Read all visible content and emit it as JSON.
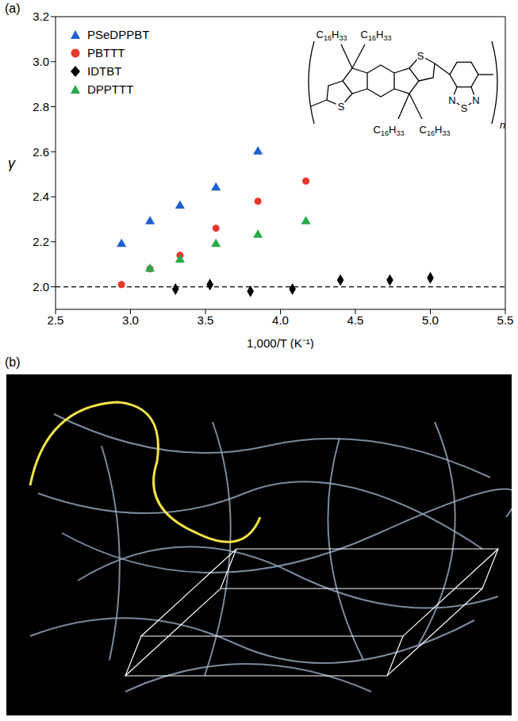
{
  "chart_data": {
    "type": "scatter",
    "panel_label": "(a)",
    "x_label": "1,000/T (K⁻¹)",
    "y_label": "γ",
    "xlim": [
      2.5,
      5.5
    ],
    "xticks": [
      2.5,
      {
        "value": 3,
        "label": "3.0"
      },
      3.5,
      {
        "value": 4,
        "label": "4.0"
      },
      4.5,
      {
        "value": 5,
        "label": "5.0"
      },
      5.5
    ],
    "ylim": [
      1.9,
      3.2
    ],
    "yticks": [
      {
        "value": 2,
        "label": "2.0"
      },
      2.2,
      2.4,
      2.6,
      2.8,
      {
        "value": 3,
        "label": "3.0"
      },
      3.2
    ],
    "grid": false,
    "legend": "upper left",
    "reference_line": {
      "y": 2,
      "line_style": "dashed"
    },
    "series": [
      {
        "name": "PSeDPPBT",
        "color": "#1f5fd0",
        "marker": "triangle",
        "x": [
          2.94,
          3.13,
          3.33,
          3.57,
          3.85
        ],
        "values": [
          2.19,
          2.29,
          2.36,
          2.44,
          2.6
        ]
      },
      {
        "name": "PBTTT",
        "color": "#e8382c",
        "marker": "circle",
        "x": [
          2.94,
          3.13,
          3.33,
          3.57,
          3.85,
          4.17
        ],
        "values": [
          2.01,
          2.08,
          2.14,
          2.26,
          2.38,
          2.47
        ]
      },
      {
        "name": "IDTBT",
        "color": "#000000",
        "marker": "diamond",
        "x": [
          3.3,
          3.53,
          3.8,
          4.08,
          4.4,
          4.73,
          5.0
        ],
        "values": [
          1.99,
          2.01,
          1.98,
          1.99,
          2.03,
          2.03,
          2.04
        ]
      },
      {
        "name": "DPPTTT",
        "color": "#2aa84a",
        "marker": "triangle",
        "x": [
          3.13,
          3.33,
          3.57,
          3.85,
          4.17
        ],
        "values": [
          2.08,
          2.12,
          2.19,
          2.23,
          2.29
        ]
      }
    ],
    "annotations": {
      "structure": {
        "substituents": [
          "C16H33",
          "C16H33",
          "C16H33",
          "C16H33"
        ],
        "atoms": [
          "S",
          "S",
          "S",
          "N",
          "N"
        ],
        "repeat": "n"
      }
    }
  },
  "image_panel": {
    "label": "(b)"
  }
}
